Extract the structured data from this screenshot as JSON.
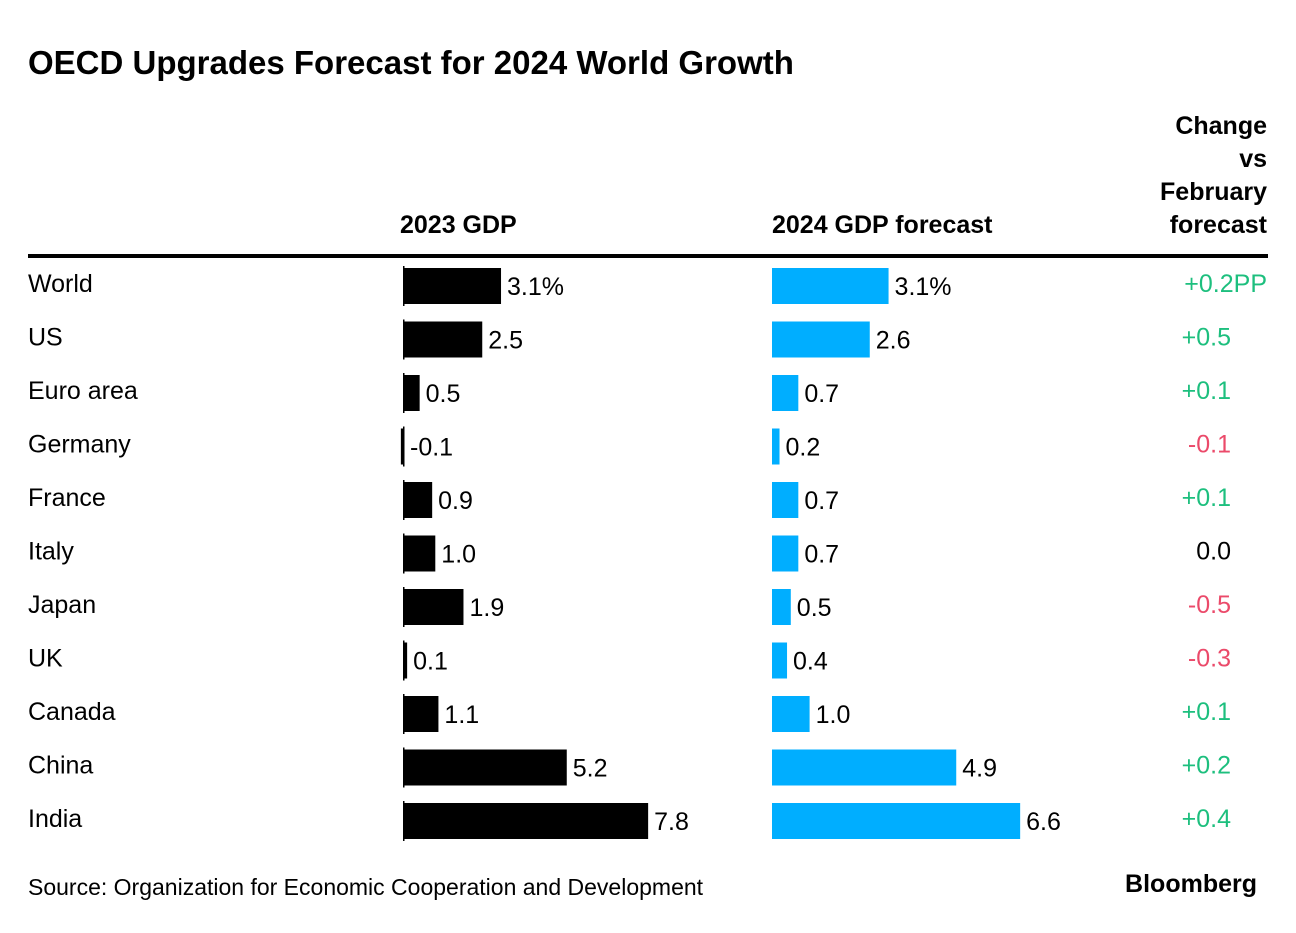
{
  "chart_data": {
    "type": "bar",
    "title": "OECD Upgrades Forecast for 2024 World Growth",
    "columns": {
      "col1": "2023 GDP",
      "col2": "2024 GDP forecast",
      "col3": [
        "Change",
        "vs",
        "February",
        "forecast"
      ]
    },
    "categories": [
      "World",
      "US",
      "Euro area",
      "Germany",
      "France",
      "Italy",
      "Japan",
      "UK",
      "Canada",
      "China",
      "India"
    ],
    "series": [
      {
        "name": "2023 GDP",
        "values": [
          3.1,
          2.5,
          0.5,
          -0.1,
          0.9,
          1.0,
          1.9,
          0.1,
          1.1,
          5.2,
          7.8
        ],
        "labels": [
          "3.1%",
          "2.5",
          "0.5",
          "-0.1",
          "0.9",
          "1.0",
          "1.9",
          "0.1",
          "1.1",
          "5.2",
          "7.8"
        ],
        "color": "#000000"
      },
      {
        "name": "2024 GDP forecast",
        "values": [
          3.1,
          2.6,
          0.7,
          0.2,
          0.7,
          0.7,
          0.5,
          0.4,
          1.0,
          4.9,
          6.6
        ],
        "labels": [
          "3.1%",
          "2.6",
          "0.7",
          "0.2",
          "0.7",
          "0.7",
          "0.5",
          "0.4",
          "1.0",
          "4.9",
          "6.6"
        ],
        "color": "#00aeff"
      }
    ],
    "change": {
      "values": [
        0.2,
        0.5,
        0.1,
        -0.1,
        0.1,
        0.0,
        -0.5,
        -0.3,
        0.1,
        0.2,
        0.4
      ],
      "labels": [
        "+0.2PP",
        "+0.5",
        "+0.1",
        "-0.1",
        "+0.1",
        "0.0",
        "-0.5",
        "-0.3",
        "+0.1",
        "+0.2",
        "+0.4"
      ],
      "colors": {
        "positive": "#1dbf7e",
        "negative": "#eb4a6a",
        "zero": "#000000"
      }
    },
    "source": "Source: Organization for Economic Cooperation and Development",
    "brand": "Bloomberg"
  }
}
